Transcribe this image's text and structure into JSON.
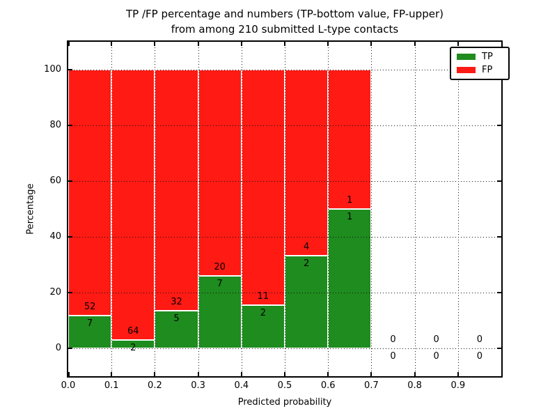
{
  "chart_data": {
    "type": "bar",
    "stacked": true,
    "title_line1": "TP /FP percentage and numbers (TP-bottom value, FP-upper)",
    "title_line2": "from among 210 submitted L-type contacts",
    "xlabel": "Predicted probability",
    "ylabel": "Percentage",
    "x_tick_labels": [
      "0.0",
      "0.1",
      "0.2",
      "0.3",
      "0.4",
      "0.5",
      "0.6",
      "0.7",
      "0.8",
      "0.9"
    ],
    "x_tick_values": [
      0.0,
      0.1,
      0.2,
      0.3,
      0.4,
      0.5,
      0.6,
      0.7,
      0.8,
      0.9
    ],
    "y_tick_labels": [
      "0",
      "20",
      "40",
      "60",
      "80",
      "100"
    ],
    "y_tick_values": [
      0,
      20,
      40,
      60,
      80,
      100
    ],
    "xlim": [
      0.0,
      1.0
    ],
    "ylim": [
      -10,
      110
    ],
    "grid": "dotted",
    "bar_unit": "percent_stacked_to_100",
    "bins": [
      {
        "x_start": 0.0,
        "x_end": 0.1,
        "tp": 7,
        "fp": 52
      },
      {
        "x_start": 0.1,
        "x_end": 0.2,
        "tp": 2,
        "fp": 64
      },
      {
        "x_start": 0.2,
        "x_end": 0.3,
        "tp": 5,
        "fp": 32
      },
      {
        "x_start": 0.3,
        "x_end": 0.4,
        "tp": 7,
        "fp": 20
      },
      {
        "x_start": 0.4,
        "x_end": 0.5,
        "tp": 2,
        "fp": 11
      },
      {
        "x_start": 0.5,
        "x_end": 0.6,
        "tp": 2,
        "fp": 4
      },
      {
        "x_start": 0.6,
        "x_end": 0.7,
        "tp": 1,
        "fp": 1
      },
      {
        "x_start": 0.7,
        "x_end": 0.8,
        "tp": 0,
        "fp": 0
      },
      {
        "x_start": 0.8,
        "x_end": 0.9,
        "tp": 0,
        "fp": 0
      },
      {
        "x_start": 0.9,
        "x_end": 1.0,
        "tp": 0,
        "fp": 0
      }
    ],
    "legend": {
      "position": "upper right",
      "items": [
        {
          "label": "TP",
          "color": "#1e8c1e"
        },
        {
          "label": "FP",
          "color": "#ff1a14"
        }
      ]
    },
    "colors": {
      "tp": "#1e8c1e",
      "fp": "#ff1a14",
      "bar_edge": "#ffffff",
      "grid": "#111111",
      "spine": "#000000",
      "background": "#ffffff"
    }
  }
}
